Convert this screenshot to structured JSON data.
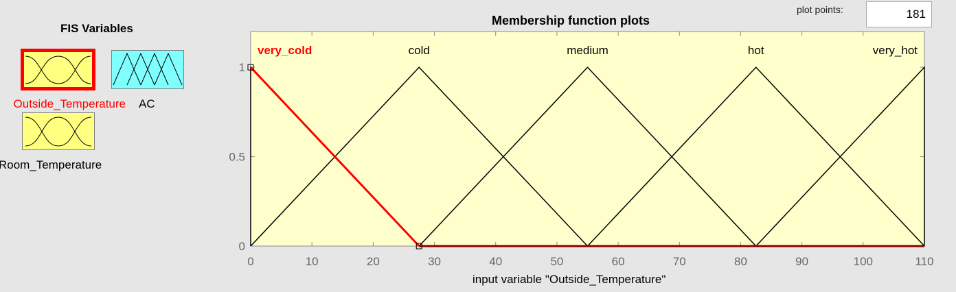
{
  "sidebar": {
    "title": "FIS Variables",
    "variables": [
      {
        "name": "Outside_Temperature",
        "type": "input",
        "selected": true,
        "color": "#ffff80"
      },
      {
        "name": "AC",
        "type": "output",
        "selected": false,
        "color": "#80ffff"
      },
      {
        "name": "Room_Temperature",
        "type": "input",
        "selected": false,
        "color": "#ffff80"
      }
    ]
  },
  "controls": {
    "plot_points_label": "plot points:",
    "plot_points_value": "181"
  },
  "chart_data": {
    "type": "line",
    "title": "Membership function plots",
    "xlabel": "input variable \"Outside_Temperature\"",
    "ylabel": "",
    "xlim": [
      0,
      110
    ],
    "ylim": [
      0,
      1.2
    ],
    "x_ticks": [
      0,
      10,
      20,
      30,
      40,
      50,
      60,
      70,
      80,
      90,
      100,
      110
    ],
    "y_ticks": [
      0,
      0.5,
      1
    ],
    "background": "#ffffcc",
    "selected_color": "#ff0000",
    "series": [
      {
        "name": "very_cold",
        "selected": true,
        "x": [
          0,
          0,
          27.5
        ],
        "y": [
          0,
          1,
          0
        ]
      },
      {
        "name": "cold",
        "selected": false,
        "x": [
          0,
          27.5,
          55
        ],
        "y": [
          0,
          1,
          0
        ]
      },
      {
        "name": "medium",
        "selected": false,
        "x": [
          27.5,
          55,
          82.5
        ],
        "y": [
          0,
          1,
          0
        ]
      },
      {
        "name": "hot",
        "selected": false,
        "x": [
          55,
          82.5,
          110
        ],
        "y": [
          0,
          1,
          0
        ]
      },
      {
        "name": "very_hot",
        "selected": false,
        "x": [
          82.5,
          110,
          110
        ],
        "y": [
          0,
          1,
          0
        ]
      }
    ]
  }
}
